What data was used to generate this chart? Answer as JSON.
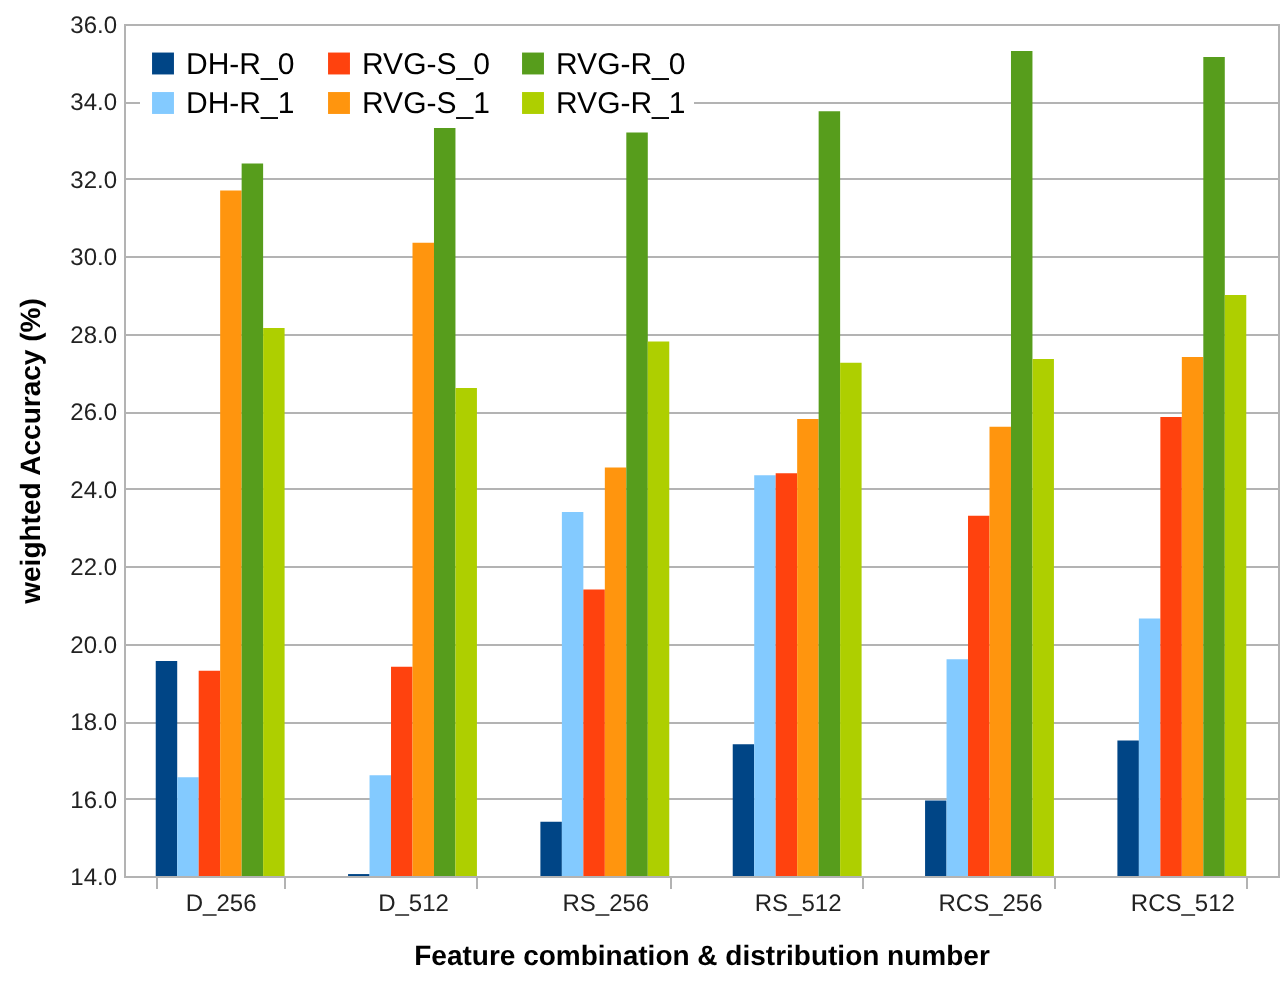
{
  "chart_data": {
    "type": "bar",
    "xlabel": "Feature combination & distribution number",
    "ylabel": "weighted Accuracy (%)",
    "categories": [
      "D_256",
      "D_512",
      "RS_256",
      "RS_512",
      "RCS_256",
      "RCS_512"
    ],
    "series": [
      {
        "name": "DH-R_0",
        "color": "#004586",
        "values": [
          19.55,
          14.05,
          15.4,
          17.4,
          15.95,
          17.5
        ]
      },
      {
        "name": "DH-R_1",
        "color": "#83caff",
        "values": [
          16.55,
          16.6,
          23.4,
          24.35,
          19.6,
          20.65
        ]
      },
      {
        "name": "RVG-S_0",
        "color": "#ff420e",
        "values": [
          19.3,
          19.4,
          21.4,
          24.4,
          23.3,
          25.85
        ]
      },
      {
        "name": "RVG-S_1",
        "color": "#ff950e",
        "values": [
          31.7,
          30.35,
          24.55,
          25.8,
          25.6,
          27.4
        ]
      },
      {
        "name": "RVG-R_0",
        "color": "#579d1c",
        "values": [
          32.4,
          33.35,
          33.2,
          33.75,
          35.3,
          35.15
        ]
      },
      {
        "name": "RVG-R_1",
        "color": "#aecf00",
        "values": [
          28.15,
          26.6,
          27.8,
          27.25,
          27.35,
          29.0
        ]
      }
    ],
    "ylim": [
      14,
      36
    ],
    "yticks": [
      {
        "value": 14,
        "label": "14.0"
      },
      {
        "value": 16,
        "label": "16.0"
      },
      {
        "value": 18,
        "label": "18.0"
      },
      {
        "value": 20,
        "label": "20.0"
      },
      {
        "value": 22,
        "label": "22.0"
      },
      {
        "value": 24,
        "label": "24.0"
      },
      {
        "value": 26,
        "label": "26.0"
      },
      {
        "value": 28,
        "label": "28.0"
      },
      {
        "value": 30,
        "label": "30.0"
      },
      {
        "value": 32,
        "label": "32.0"
      },
      {
        "value": 34,
        "label": "34.0"
      },
      {
        "value": 36,
        "label": "36.0"
      }
    ],
    "grid": "y",
    "legend": "top left"
  }
}
